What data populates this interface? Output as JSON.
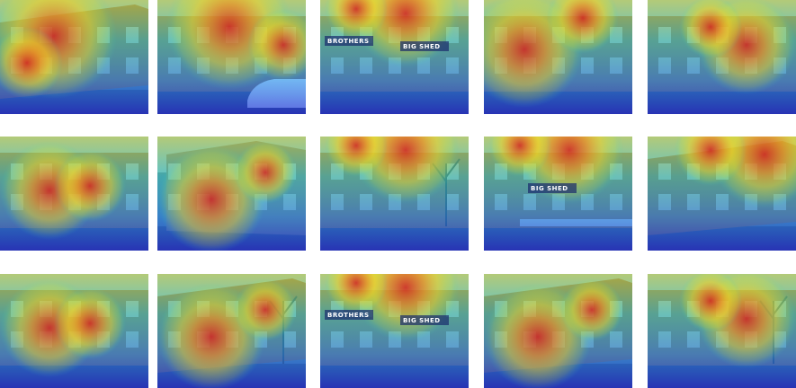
{
  "grid": {
    "rows": 3,
    "cols": 5,
    "description_kind": "saliency heatmaps over street-view photographs of terraced houses",
    "heat_palette": [
      "#1e2bd6",
      "#1f8ff0",
      "#2fd7c8",
      "#c8e63a",
      "#f6d21f",
      "#f08a1c",
      "#d8241c"
    ]
  },
  "tiles": [
    {
      "id": "r1c1",
      "scene": "terrace-perspective",
      "hot": "left-upper"
    },
    {
      "id": "r1c2",
      "scene": "terrace-front-car",
      "hot": "center-upper"
    },
    {
      "id": "r1c3",
      "scene": "shopfront",
      "hot": "top-center",
      "signs": [
        "BROTHERS",
        "BIG SHED"
      ]
    },
    {
      "id": "r1c4",
      "scene": "gabled-houses",
      "hot": "left-middle"
    },
    {
      "id": "r1c5",
      "scene": "red-brick-house",
      "hot": "center-right"
    },
    {
      "id": "r2c1",
      "scene": "terrace-front",
      "hot": "center"
    },
    {
      "id": "r2c2",
      "scene": "corner-house",
      "hot": "center-left"
    },
    {
      "id": "r2c3",
      "scene": "terrace-tree",
      "hot": "top-center"
    },
    {
      "id": "r2c4",
      "scene": "shopfront-fence",
      "hot": "top-center",
      "signs": [
        "BIG SHED"
      ]
    },
    {
      "id": "r2c5",
      "scene": "terrace-diagonal",
      "hot": "top-right"
    },
    {
      "id": "r3c1",
      "scene": "house-gable",
      "hot": "center"
    },
    {
      "id": "r3c2",
      "scene": "street-perspective",
      "hot": "center-left"
    },
    {
      "id": "r3c3",
      "scene": "shopfront",
      "hot": "top-center",
      "signs": [
        "BROTHERS",
        "BIG SHED"
      ]
    },
    {
      "id": "r3c4",
      "scene": "terrace-perspective",
      "hot": "center-left"
    },
    {
      "id": "r3c5",
      "scene": "street-lamp",
      "hot": "center-right"
    }
  ]
}
